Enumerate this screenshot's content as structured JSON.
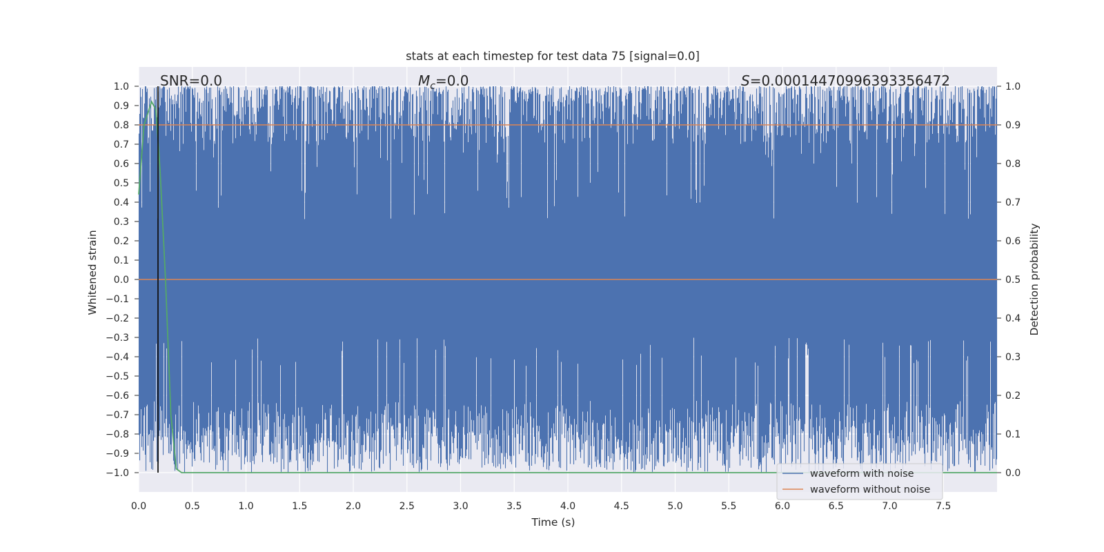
{
  "chart_data": {
    "type": "line",
    "title": "stats at each timestep for test data 75 [signal=0.0]",
    "xlabel": "Time (s)",
    "ylabel": "Whitened strain",
    "y2label": "Detection probability",
    "xlim": [
      0.0,
      8.0
    ],
    "ylim": [
      -1.1,
      1.1
    ],
    "y2lim": [
      -0.05,
      1.05
    ],
    "x_ticks": [
      "0.0",
      "0.5",
      "1.0",
      "1.5",
      "2.0",
      "2.5",
      "3.0",
      "3.5",
      "4.0",
      "4.5",
      "5.0",
      "5.5",
      "6.0",
      "6.5",
      "7.0",
      "7.5"
    ],
    "y_ticks": [
      "1.0",
      "0.9",
      "0.8",
      "0.7",
      "0.6",
      "0.5",
      "0.4",
      "0.3",
      "0.2",
      "0.1",
      "0.0",
      "−0.1",
      "−0.2",
      "−0.3",
      "−0.4",
      "−0.5",
      "−0.6",
      "−0.7",
      "−0.8",
      "−0.9",
      "−1.0"
    ],
    "y2_ticks": [
      "1.0",
      "0.9",
      "0.8",
      "0.7",
      "0.6",
      "0.5",
      "0.4",
      "0.3",
      "0.2",
      "0.1",
      "0.0"
    ],
    "grid": true,
    "background": "#eaeaf2",
    "annotations": {
      "snr": "SNR=0.0",
      "mc_symbol": "M",
      "mc_sub": "c",
      "mc_value": "=0.0",
      "s_symbol": "S",
      "s_value": "=0.00014470996393356472"
    },
    "vline_x": 0.18,
    "series": [
      {
        "name": "waveform with noise",
        "color": "#4c72b0",
        "description": "dense noise oscillating between -1.0 and 1.0 across 0-8 s"
      },
      {
        "name": "waveform without noise",
        "color": "#dd8452",
        "x": [
          0.0,
          8.0
        ],
        "y": [
          0.0,
          0.0
        ]
      },
      {
        "name": "detection probability",
        "axis": "right",
        "color": "#55a868",
        "x": [
          0.0,
          0.05,
          0.12,
          0.16,
          0.2,
          0.25,
          0.3,
          0.35,
          0.4,
          8.0
        ],
        "y": [
          0.72,
          0.9,
          0.96,
          0.94,
          0.78,
          0.5,
          0.15,
          0.01,
          0.0,
          0.0
        ]
      }
    ],
    "legend": {
      "placement": "lower right",
      "entries": [
        {
          "label": "waveform with noise",
          "color": "#4c72b0"
        },
        {
          "label": "waveform without noise",
          "color": "#dd8452"
        }
      ]
    }
  }
}
